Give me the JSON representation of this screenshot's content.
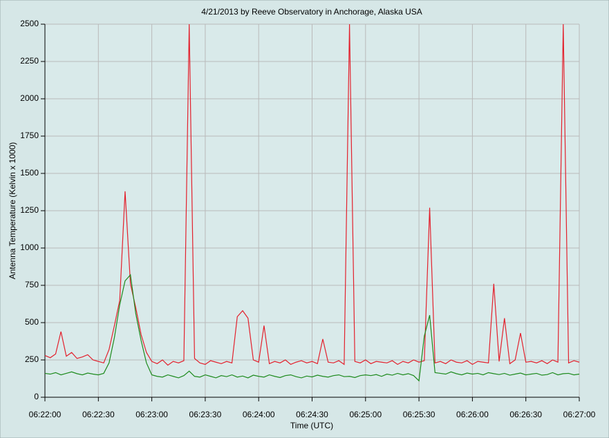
{
  "chart_data": {
    "type": "line",
    "title": "4/21/2013  by  Reeve Observatory  in  Anchorage, Alaska  USA",
    "x_label": "Time (UTC)",
    "y_label": "Antenna Temperature (Kelvin x 1000)",
    "x": [
      22920,
      22923,
      22926,
      22929,
      22932,
      22935,
      22938,
      22941,
      22944,
      22947,
      22950,
      22953,
      22956,
      22959,
      22962,
      22965,
      22968,
      22971,
      22974,
      22977,
      22980,
      22983,
      22986,
      22989,
      22992,
      22995,
      22998,
      23001,
      23004,
      23007,
      23010,
      23013,
      23016,
      23019,
      23022,
      23025,
      23028,
      23031,
      23034,
      23037,
      23040,
      23043,
      23046,
      23049,
      23052,
      23055,
      23058,
      23061,
      23064,
      23067,
      23070,
      23073,
      23076,
      23079,
      23082,
      23085,
      23088,
      23091,
      23094,
      23097,
      23100,
      23103,
      23106,
      23109,
      23112,
      23115,
      23118,
      23121,
      23124,
      23127,
      23130,
      23133,
      23136,
      23139,
      23142,
      23145,
      23148,
      23151,
      23154,
      23157,
      23160,
      23163,
      23166,
      23169,
      23172,
      23175,
      23178,
      23181,
      23184,
      23187,
      23190,
      23193,
      23196,
      23199,
      23202,
      23205,
      23208,
      23211,
      23214,
      23217,
      23220
    ],
    "series": [
      {
        "color": "#e3202c",
        "values": [
          280,
          265,
          290,
          440,
          275,
          300,
          260,
          270,
          285,
          250,
          240,
          230,
          320,
          480,
          650,
          1380,
          760,
          600,
          420,
          300,
          240,
          225,
          250,
          215,
          240,
          230,
          245,
          2500,
          260,
          230,
          220,
          245,
          235,
          225,
          240,
          230,
          540,
          580,
          530,
          250,
          235,
          480,
          225,
          240,
          230,
          250,
          220,
          235,
          245,
          230,
          240,
          225,
          390,
          235,
          230,
          245,
          220,
          2500,
          240,
          230,
          250,
          225,
          240,
          235,
          230,
          245,
          220,
          240,
          230,
          250,
          235,
          245,
          1270,
          230,
          240,
          225,
          250,
          235,
          230,
          245,
          220,
          240,
          235,
          230,
          760,
          240,
          530,
          225,
          250,
          430,
          235,
          240,
          230,
          245,
          225,
          250,
          235,
          2500,
          230,
          245,
          235
        ]
      },
      {
        "color": "#1c8a1c",
        "values": [
          160,
          155,
          165,
          150,
          160,
          170,
          158,
          150,
          162,
          155,
          150,
          160,
          230,
          400,
          620,
          780,
          820,
          560,
          380,
          230,
          150,
          140,
          135,
          150,
          140,
          130,
          145,
          175,
          140,
          135,
          150,
          140,
          130,
          145,
          138,
          150,
          135,
          142,
          130,
          148,
          140,
          135,
          150,
          140,
          132,
          145,
          150,
          138,
          130,
          142,
          136,
          148,
          140,
          135,
          145,
          150,
          138,
          140,
          132,
          145,
          150,
          145,
          152,
          140,
          155,
          148,
          160,
          150,
          158,
          145,
          110,
          410,
          550,
          165,
          160,
          155,
          170,
          158,
          150,
          162,
          155,
          160,
          150,
          165,
          158,
          152,
          160,
          148,
          155,
          162,
          150,
          155,
          160,
          148,
          152,
          165,
          150,
          158,
          160,
          150,
          155
        ]
      }
    ],
    "xlim": [
      22920,
      23220
    ],
    "xticks": [
      {
        "value": 22920,
        "label": "06:22:00"
      },
      {
        "value": 22950,
        "label": "06:22:30"
      },
      {
        "value": 22980,
        "label": "06:23:00"
      },
      {
        "value": 23010,
        "label": "06:23:30"
      },
      {
        "value": 23040,
        "label": "06:24:00"
      },
      {
        "value": 23070,
        "label": "06:24:30"
      },
      {
        "value": 23100,
        "label": "06:25:00"
      },
      {
        "value": 23130,
        "label": "06:25:30"
      },
      {
        "value": 23160,
        "label": "06:26:00"
      },
      {
        "value": 23190,
        "label": "06:26:30"
      },
      {
        "value": 23220,
        "label": "06:27:00"
      }
    ],
    "ylim": [
      0,
      2500
    ],
    "yticks": [
      0,
      250,
      500,
      750,
      1000,
      1250,
      1500,
      1750,
      2000,
      2250,
      2500
    ],
    "grid": true
  }
}
